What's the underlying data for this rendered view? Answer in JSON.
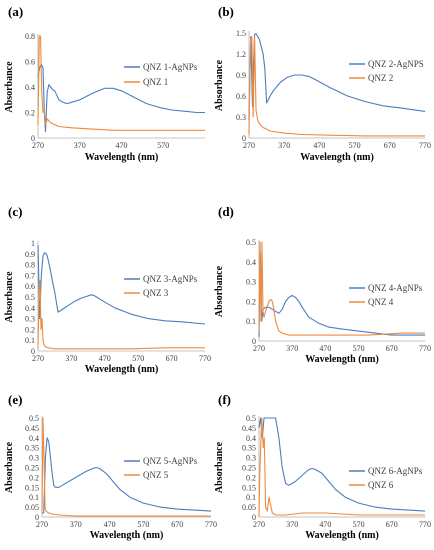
{
  "colors": {
    "agnp": "#4a7ebf",
    "qnz": "#ee8a3c",
    "axis": "#b0b0b0"
  },
  "chart_data": [
    {
      "type": "line",
      "panel": "(a)",
      "xlabel": "Wavelength (nm)",
      "ylabel": "Absorbance",
      "xlim": [
        270,
        670
      ],
      "ylim": [
        0,
        0.8
      ],
      "xticks": [
        270,
        370,
        470,
        570
      ],
      "yticks": [
        0,
        0.2,
        0.4,
        0.6,
        0.8
      ],
      "ytick_labels": [
        "0",
        "0.2",
        "0.4",
        "0.6",
        "0.8"
      ],
      "series": [
        {
          "name": "QNZ 1-AgNPs",
          "color": "#4a7ebf",
          "x": [
            270,
            274,
            278,
            282,
            285,
            288,
            292,
            296,
            300,
            305,
            310,
            320,
            330,
            340,
            350,
            370,
            400,
            430,
            450,
            470,
            500,
            530,
            560,
            590,
            620,
            650,
            670
          ],
          "y": [
            0.48,
            0.55,
            0.58,
            0.55,
            0.2,
            0.05,
            0.36,
            0.42,
            0.4,
            0.38,
            0.37,
            0.3,
            0.28,
            0.27,
            0.28,
            0.3,
            0.35,
            0.39,
            0.39,
            0.37,
            0.32,
            0.27,
            0.24,
            0.22,
            0.21,
            0.2,
            0.2
          ]
        },
        {
          "name": "QNZ 1",
          "color": "#ee8a3c",
          "x": [
            270,
            273,
            276,
            279,
            282,
            285,
            288,
            292,
            300,
            320,
            350,
            400,
            450,
            500,
            550,
            600,
            650,
            670
          ],
          "y": [
            0.1,
            0.82,
            0.8,
            0.35,
            0.2,
            0.22,
            0.1,
            0.15,
            0.12,
            0.09,
            0.08,
            0.07,
            0.06,
            0.06,
            0.06,
            0.06,
            0.06,
            0.06
          ]
        }
      ]
    },
    {
      "type": "line",
      "panel": "(b)",
      "xlabel": "Wavelength (nm)",
      "ylabel": "Absorbance",
      "xlim": [
        270,
        770
      ],
      "ylim": [
        0,
        1.5
      ],
      "xticks": [
        270,
        370,
        470,
        570,
        670,
        770
      ],
      "yticks": [
        0,
        0.3,
        0.6,
        0.9,
        1.2,
        1.5
      ],
      "ytick_labels": [
        "0",
        "0.3",
        "0.6",
        "0.9",
        "1.2",
        "1.5"
      ],
      "series": [
        {
          "name": "QNZ 2-AgNPS",
          "color": "#4a7ebf",
          "x": [
            270,
            275,
            280,
            283,
            286,
            290,
            295,
            300,
            305,
            310,
            315,
            320,
            325,
            330,
            340,
            360,
            380,
            400,
            420,
            440,
            460,
            500,
            550,
            600,
            650,
            700,
            770
          ],
          "y": [
            0.25,
            1.45,
            0.45,
            1.1,
            1.48,
            1.49,
            1.45,
            1.4,
            1.3,
            1.2,
            1.0,
            0.5,
            0.55,
            0.6,
            0.68,
            0.8,
            0.87,
            0.9,
            0.9,
            0.88,
            0.83,
            0.72,
            0.6,
            0.52,
            0.46,
            0.43,
            0.38
          ]
        },
        {
          "name": "QNZ 2",
          "color": "#ee8a3c",
          "x": [
            270,
            274,
            278,
            282,
            286,
            290,
            295,
            300,
            310,
            330,
            370,
            420,
            500,
            600,
            700,
            770
          ],
          "y": [
            0.05,
            1.35,
            1.45,
            0.3,
            1.45,
            0.4,
            0.25,
            0.2,
            0.15,
            0.1,
            0.07,
            0.05,
            0.04,
            0.03,
            0.03,
            0.03
          ]
        }
      ]
    },
    {
      "type": "line",
      "panel": "(c)",
      "xlabel": "Wavelength (nm)",
      "ylabel": "Absorbance",
      "xlim": [
        270,
        770
      ],
      "ylim": [
        0,
        1
      ],
      "xticks": [
        270,
        370,
        470,
        570,
        670,
        770
      ],
      "yticks": [
        0,
        0.1,
        0.2,
        0.3,
        0.4,
        0.5,
        0.6,
        0.7,
        0.8,
        0.9,
        1
      ],
      "ytick_labels": [
        "0",
        "0.1",
        "0.2",
        "0.3",
        "0.4",
        "0.5",
        "0.6",
        "0.7",
        "0.8",
        "0.9",
        "1"
      ],
      "series": [
        {
          "name": "QNZ 3-AgNPs",
          "color": "#4a7ebf",
          "x": [
            270,
            275,
            280,
            285,
            290,
            295,
            300,
            305,
            310,
            315,
            320,
            325,
            330,
            340,
            360,
            380,
            400,
            420,
            430,
            440,
            460,
            500,
            550,
            600,
            650,
            700,
            770
          ],
          "y": [
            0.98,
            0.3,
            0.7,
            0.88,
            0.91,
            0.9,
            0.85,
            0.78,
            0.7,
            0.62,
            0.55,
            0.45,
            0.36,
            0.38,
            0.42,
            0.46,
            0.49,
            0.51,
            0.52,
            0.51,
            0.47,
            0.4,
            0.34,
            0.3,
            0.28,
            0.27,
            0.25
          ]
        },
        {
          "name": "QNZ 3",
          "color": "#ee8a3c",
          "x": [
            270,
            273,
            276,
            279,
            282,
            285,
            288,
            292,
            300,
            320,
            360,
            450,
            550,
            650,
            770
          ],
          "y": [
            0.02,
            0.5,
            0.65,
            0.2,
            0.3,
            0.1,
            0.06,
            0.04,
            0.03,
            0.02,
            0.02,
            0.02,
            0.02,
            0.03,
            0.03
          ]
        }
      ]
    },
    {
      "type": "line",
      "panel": "(d)",
      "xlabel": "Wavelength (nm)",
      "ylabel": "Absorbance",
      "xlim": [
        270,
        770
      ],
      "ylim": [
        0,
        0.5
      ],
      "xticks": [
        270,
        370,
        470,
        570,
        670,
        770
      ],
      "yticks": [
        0,
        0.1,
        0.2,
        0.3,
        0.4,
        0.5
      ],
      "ytick_labels": [
        "0",
        "0.1",
        "0.2",
        "0.3",
        "0.4",
        "0.5"
      ],
      "series": [
        {
          "name": "QNZ 4-AgNPs",
          "color": "#4a7ebf",
          "x": [
            270,
            274,
            278,
            282,
            290,
            300,
            310,
            320,
            330,
            340,
            350,
            360,
            370,
            380,
            390,
            400,
            420,
            450,
            480,
            520,
            570,
            620,
            670,
            720,
            770
          ],
          "y": [
            0.02,
            0.45,
            0.1,
            0.16,
            0.17,
            0.17,
            0.16,
            0.15,
            0.14,
            0.16,
            0.2,
            0.22,
            0.23,
            0.22,
            0.2,
            0.17,
            0.12,
            0.09,
            0.07,
            0.06,
            0.05,
            0.04,
            0.03,
            0.03,
            0.03
          ]
        },
        {
          "name": "QNZ 4",
          "color": "#ee8a3c",
          "x": [
            270,
            273,
            276,
            279,
            282,
            285,
            290,
            300,
            305,
            310,
            315,
            320,
            330,
            340,
            360,
            400,
            500,
            600,
            700,
            770
          ],
          "y": [
            0.05,
            0.5,
            0.1,
            0.5,
            0.15,
            0.12,
            0.15,
            0.2,
            0.21,
            0.2,
            0.16,
            0.1,
            0.05,
            0.04,
            0.03,
            0.03,
            0.03,
            0.03,
            0.04,
            0.04
          ]
        }
      ]
    },
    {
      "type": "line",
      "panel": "(e)",
      "xlabel": "Wavelength (nm)",
      "ylabel": "Absorbance",
      "xlim": [
        270,
        770
      ],
      "ylim": [
        0,
        0.5
      ],
      "xticks": [
        270,
        370,
        470,
        570,
        670,
        770
      ],
      "yticks": [
        0,
        0.05,
        0.1,
        0.15,
        0.2,
        0.25,
        0.3,
        0.35,
        0.4,
        0.45,
        0.5
      ],
      "ytick_labels": [
        "0",
        "0.05",
        "0.1",
        "0.15",
        "0.2",
        "0.25",
        "0.3",
        "0.35",
        "0.4",
        "0.45",
        "0.5"
      ],
      "series": [
        {
          "name": "QNZ 5-AgNPs",
          "color": "#4a7ebf",
          "x": [
            270,
            275,
            280,
            285,
            290,
            295,
            300,
            305,
            310,
            320,
            330,
            340,
            360,
            380,
            400,
            420,
            430,
            440,
            460,
            480,
            500,
            530,
            570,
            620,
            670,
            720,
            770
          ],
          "y": [
            0.02,
            0.02,
            0.3,
            0.4,
            0.38,
            0.3,
            0.22,
            0.16,
            0.15,
            0.15,
            0.16,
            0.17,
            0.19,
            0.21,
            0.23,
            0.245,
            0.25,
            0.245,
            0.22,
            0.18,
            0.14,
            0.1,
            0.07,
            0.05,
            0.04,
            0.035,
            0.03
          ]
        },
        {
          "name": "QNZ 5",
          "color": "#ee8a3c",
          "x": [
            270,
            273,
            276,
            279,
            282,
            285,
            290,
            300,
            320,
            370,
            470,
            570,
            670,
            770
          ],
          "y": [
            0.03,
            0.5,
            0.3,
            0.05,
            0.03,
            0.025,
            0.02,
            0.015,
            0.01,
            0.005,
            0.005,
            0.005,
            0.005,
            0.005
          ]
        }
      ]
    },
    {
      "type": "line",
      "panel": "(f)",
      "xlabel": "Wavelength (nm)",
      "ylabel": "Absorbance",
      "xlim": [
        270,
        770
      ],
      "ylim": [
        0,
        0.5
      ],
      "xticks": [
        270,
        370,
        470,
        570,
        670,
        770
      ],
      "yticks": [
        0,
        0.05,
        0.1,
        0.15,
        0.2,
        0.25,
        0.3,
        0.35,
        0.4,
        0.45,
        0.5
      ],
      "ytick_labels": [
        "0",
        "0.05",
        "0.1",
        "0.15",
        "0.2",
        "0.25",
        "0.3",
        "0.35",
        "0.4",
        "0.45",
        "0.5"
      ],
      "series": [
        {
          "name": "QNZ 6-AgNPs",
          "color": "#4a7ebf",
          "x": [
            270,
            275,
            280,
            285,
            290,
            300,
            310,
            320,
            330,
            340,
            350,
            360,
            380,
            400,
            420,
            430,
            440,
            460,
            480,
            500,
            530,
            570,
            620,
            670,
            720,
            770
          ],
          "y": [
            0.45,
            0.5,
            0.4,
            0.5,
            0.5,
            0.5,
            0.5,
            0.5,
            0.4,
            0.25,
            0.17,
            0.16,
            0.18,
            0.21,
            0.24,
            0.245,
            0.24,
            0.22,
            0.18,
            0.14,
            0.1,
            0.07,
            0.05,
            0.04,
            0.035,
            0.03
          ]
        },
        {
          "name": "QNZ 6",
          "color": "#ee8a3c",
          "x": [
            270,
            272,
            274,
            276,
            278,
            280,
            283,
            286,
            290,
            295,
            300,
            310,
            320,
            350,
            400,
            470,
            570,
            670,
            770
          ],
          "y": [
            0.0,
            0.2,
            0.3,
            0.4,
            0.5,
            0.45,
            0.35,
            0.4,
            0.05,
            0.03,
            0.1,
            0.02,
            0.01,
            0.01,
            0.02,
            0.02,
            0.01,
            0.01,
            0.01
          ]
        }
      ]
    }
  ]
}
